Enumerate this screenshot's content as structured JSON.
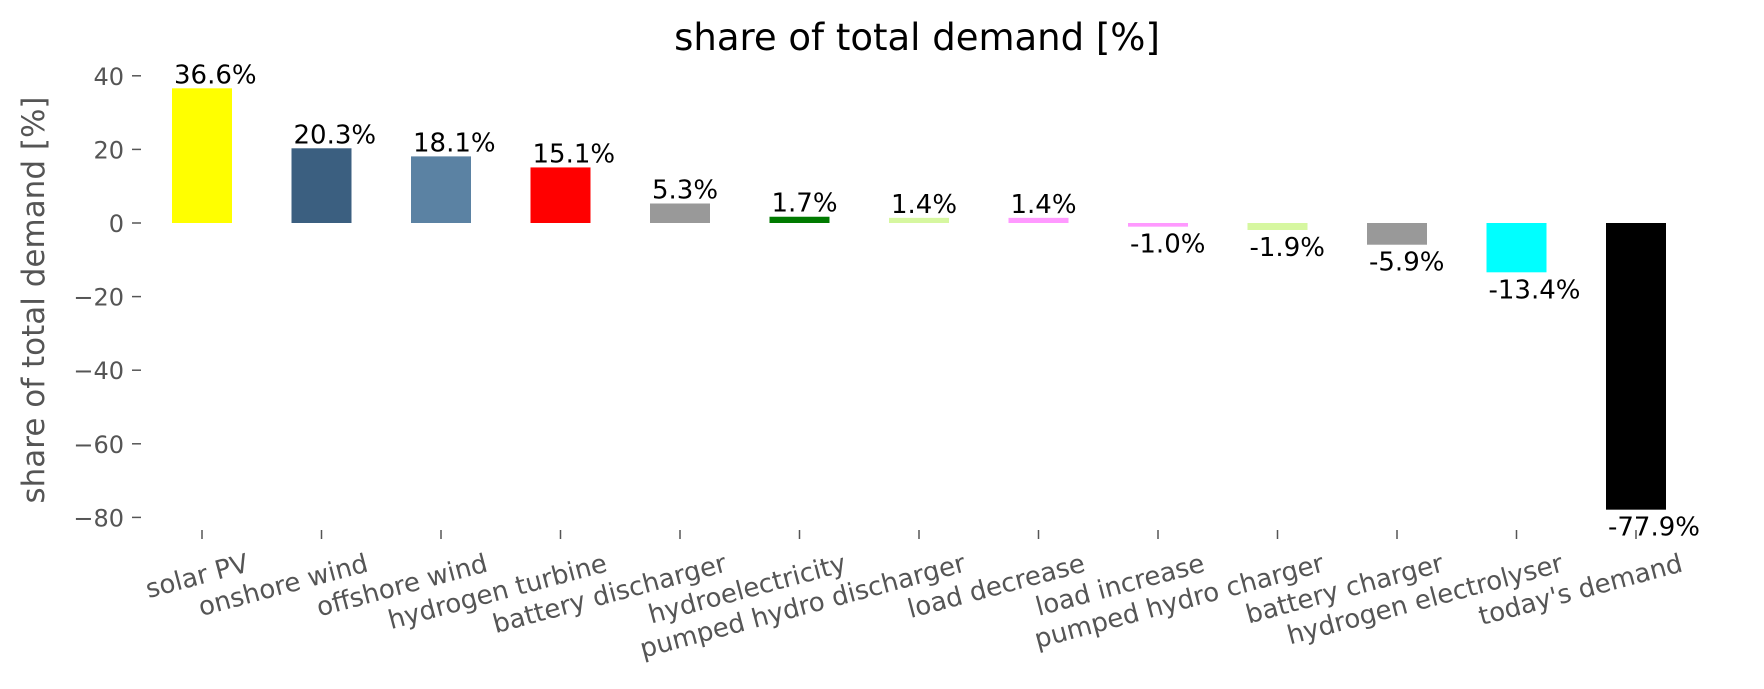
{
  "chart_data": {
    "type": "bar",
    "title": "share of total demand [%]",
    "ylabel": "share of total demand [%]",
    "xlabel": "",
    "ylim": [
      -84,
      44
    ],
    "yticks": [
      40,
      20,
      0,
      -20,
      -40,
      -60,
      -80
    ],
    "ytick_labels": [
      "40",
      "20",
      "0",
      "−20",
      "−40",
      "−60",
      "−80"
    ],
    "grid": false,
    "categories": [
      "solar PV",
      "onshore wind",
      "offshore wind",
      "hydrogen turbine",
      "battery discharger",
      "hydroelectricity",
      "pumped hydro discharger",
      "load decrease",
      "load increase",
      "pumped hydro charger",
      "battery charger",
      "hydrogen electrolyser",
      "today's demand"
    ],
    "values": [
      36.6,
      20.3,
      18.1,
      15.1,
      5.3,
      1.7,
      1.4,
      1.4,
      -1.0,
      -1.9,
      -5.9,
      -13.4,
      -77.9
    ],
    "labels": [
      "36.6%",
      "20.3%",
      "18.1%",
      "15.1%",
      "5.3%",
      "1.7%",
      "1.4%",
      "1.4%",
      "-1.0%",
      "-1.9%",
      "-5.9%",
      "-13.4%",
      "-77.9%"
    ],
    "colors": [
      "#ffff00",
      "#3b5f80",
      "#5b82a3",
      "#ff0000",
      "#999999",
      "#007a00",
      "#d6f7a0",
      "#ff99ff",
      "#ff99ff",
      "#d6f7a0",
      "#999999",
      "#00ffff",
      "#000000"
    ]
  }
}
